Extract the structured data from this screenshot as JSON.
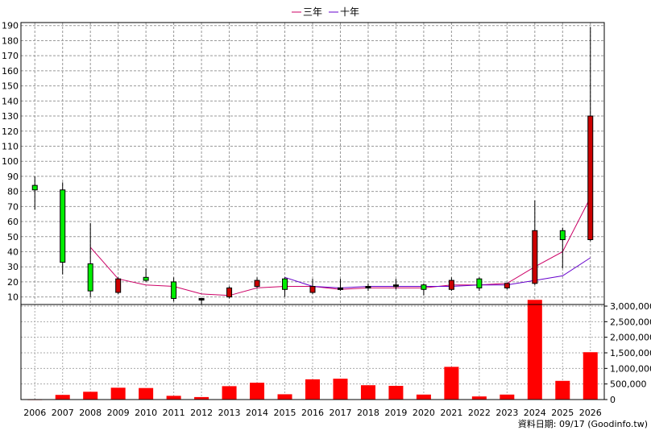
{
  "chart_data": {
    "type": "candlestick",
    "years": [
      "2006",
      "2007",
      "2008",
      "2009",
      "2010",
      "2011",
      "2012",
      "2013",
      "2014",
      "2015",
      "2016",
      "2017",
      "2018",
      "2019",
      "2020",
      "2021",
      "2022",
      "2023",
      "2024",
      "2025",
      "2026"
    ],
    "price_axis": {
      "ticks": [
        10,
        20,
        30,
        40,
        50,
        60,
        70,
        80,
        90,
        100,
        110,
        120,
        130,
        140,
        150,
        160,
        170,
        180,
        190
      ],
      "range": [
        5,
        192
      ]
    },
    "volume_axis": {
      "ticks": [
        "0",
        "500,000",
        "1,000,000",
        "1,500,000",
        "2,000,000",
        "2,500,000",
        "3,000,000"
      ],
      "range": [
        0,
        3000000
      ]
    },
    "candles": [
      {
        "year": "2006",
        "open": 81,
        "close": 84,
        "high": 90,
        "low": 68,
        "color": "green"
      },
      {
        "year": "2007",
        "open": 33,
        "close": 81,
        "high": 86,
        "low": 25,
        "color": "green"
      },
      {
        "year": "2008",
        "open": 32,
        "close": 14,
        "high": 59,
        "low": 10,
        "color": "green"
      },
      {
        "year": "2009",
        "open": 22,
        "close": 13,
        "high": 23,
        "low": 12,
        "color": "red"
      },
      {
        "year": "2010",
        "open": 21,
        "close": 23,
        "high": 29,
        "low": 20,
        "color": "green"
      },
      {
        "year": "2011",
        "open": 9,
        "close": 20,
        "high": 23,
        "low": 7,
        "color": "green"
      },
      {
        "year": "2012",
        "open": 9,
        "close": 8,
        "high": 9,
        "low": 5,
        "color": "black"
      },
      {
        "year": "2013",
        "open": 16,
        "close": 10,
        "high": 17,
        "low": 9,
        "color": "red"
      },
      {
        "year": "2014",
        "open": 17,
        "close": 21,
        "high": 23,
        "low": 16,
        "color": "red"
      },
      {
        "year": "2015",
        "open": 15,
        "close": 22,
        "high": 23,
        "low": 10,
        "color": "green"
      },
      {
        "year": "2016",
        "open": 17,
        "close": 13,
        "high": 22,
        "low": 12,
        "color": "red"
      },
      {
        "year": "2017",
        "open": 16,
        "close": 16,
        "high": 22,
        "low": 14,
        "color": "black"
      },
      {
        "year": "2018",
        "open": 16,
        "close": 17,
        "high": 19,
        "low": 14,
        "color": "black"
      },
      {
        "year": "2019",
        "open": 17,
        "close": 18,
        "high": 22,
        "low": 15,
        "color": "black"
      },
      {
        "year": "2020",
        "open": 18,
        "close": 15,
        "high": 19,
        "low": 11,
        "color": "green"
      },
      {
        "year": "2021",
        "open": 21,
        "close": 15,
        "high": 23,
        "low": 14,
        "color": "red"
      },
      {
        "year": "2022",
        "open": 16,
        "close": 22,
        "high": 23,
        "low": 14,
        "color": "green"
      },
      {
        "year": "2023",
        "open": 19,
        "close": 16,
        "high": 19,
        "low": 15,
        "color": "red"
      },
      {
        "year": "2024",
        "open": 54,
        "close": 19,
        "high": 74,
        "low": 18,
        "color": "red"
      },
      {
        "year": "2025",
        "open": 48,
        "close": 54,
        "high": 56,
        "low": 29,
        "color": "green"
      },
      {
        "year": "2026",
        "open": 48,
        "close": 130,
        "high": 189,
        "low": 47,
        "color": "red"
      }
    ],
    "series": [
      {
        "name": "三年",
        "color": "#cc0066",
        "values": [
          null,
          null,
          43,
          22,
          18,
          17,
          12,
          11,
          16,
          17,
          17,
          15,
          16,
          16,
          16,
          18,
          18,
          19,
          30,
          40,
          76
        ]
      },
      {
        "name": "十年",
        "color": "#6600cc",
        "values": [
          null,
          null,
          null,
          null,
          null,
          null,
          null,
          null,
          null,
          23,
          17,
          16,
          17,
          17,
          17,
          17,
          18,
          18,
          21,
          24,
          36
        ]
      }
    ],
    "volume": [
      10000,
      150000,
      250000,
      380000,
      370000,
      120000,
      80000,
      430000,
      540000,
      170000,
      650000,
      670000,
      460000,
      440000,
      160000,
      1050000,
      100000,
      160000,
      3200000,
      600000,
      1520000
    ]
  },
  "legend": {
    "items": [
      {
        "label": "三年",
        "color": "#cc0066"
      },
      {
        "label": "十年",
        "color": "#6600cc"
      }
    ]
  },
  "footer": {
    "date_note": "資料日期: 09/17 (Goodinfo.tw)"
  }
}
